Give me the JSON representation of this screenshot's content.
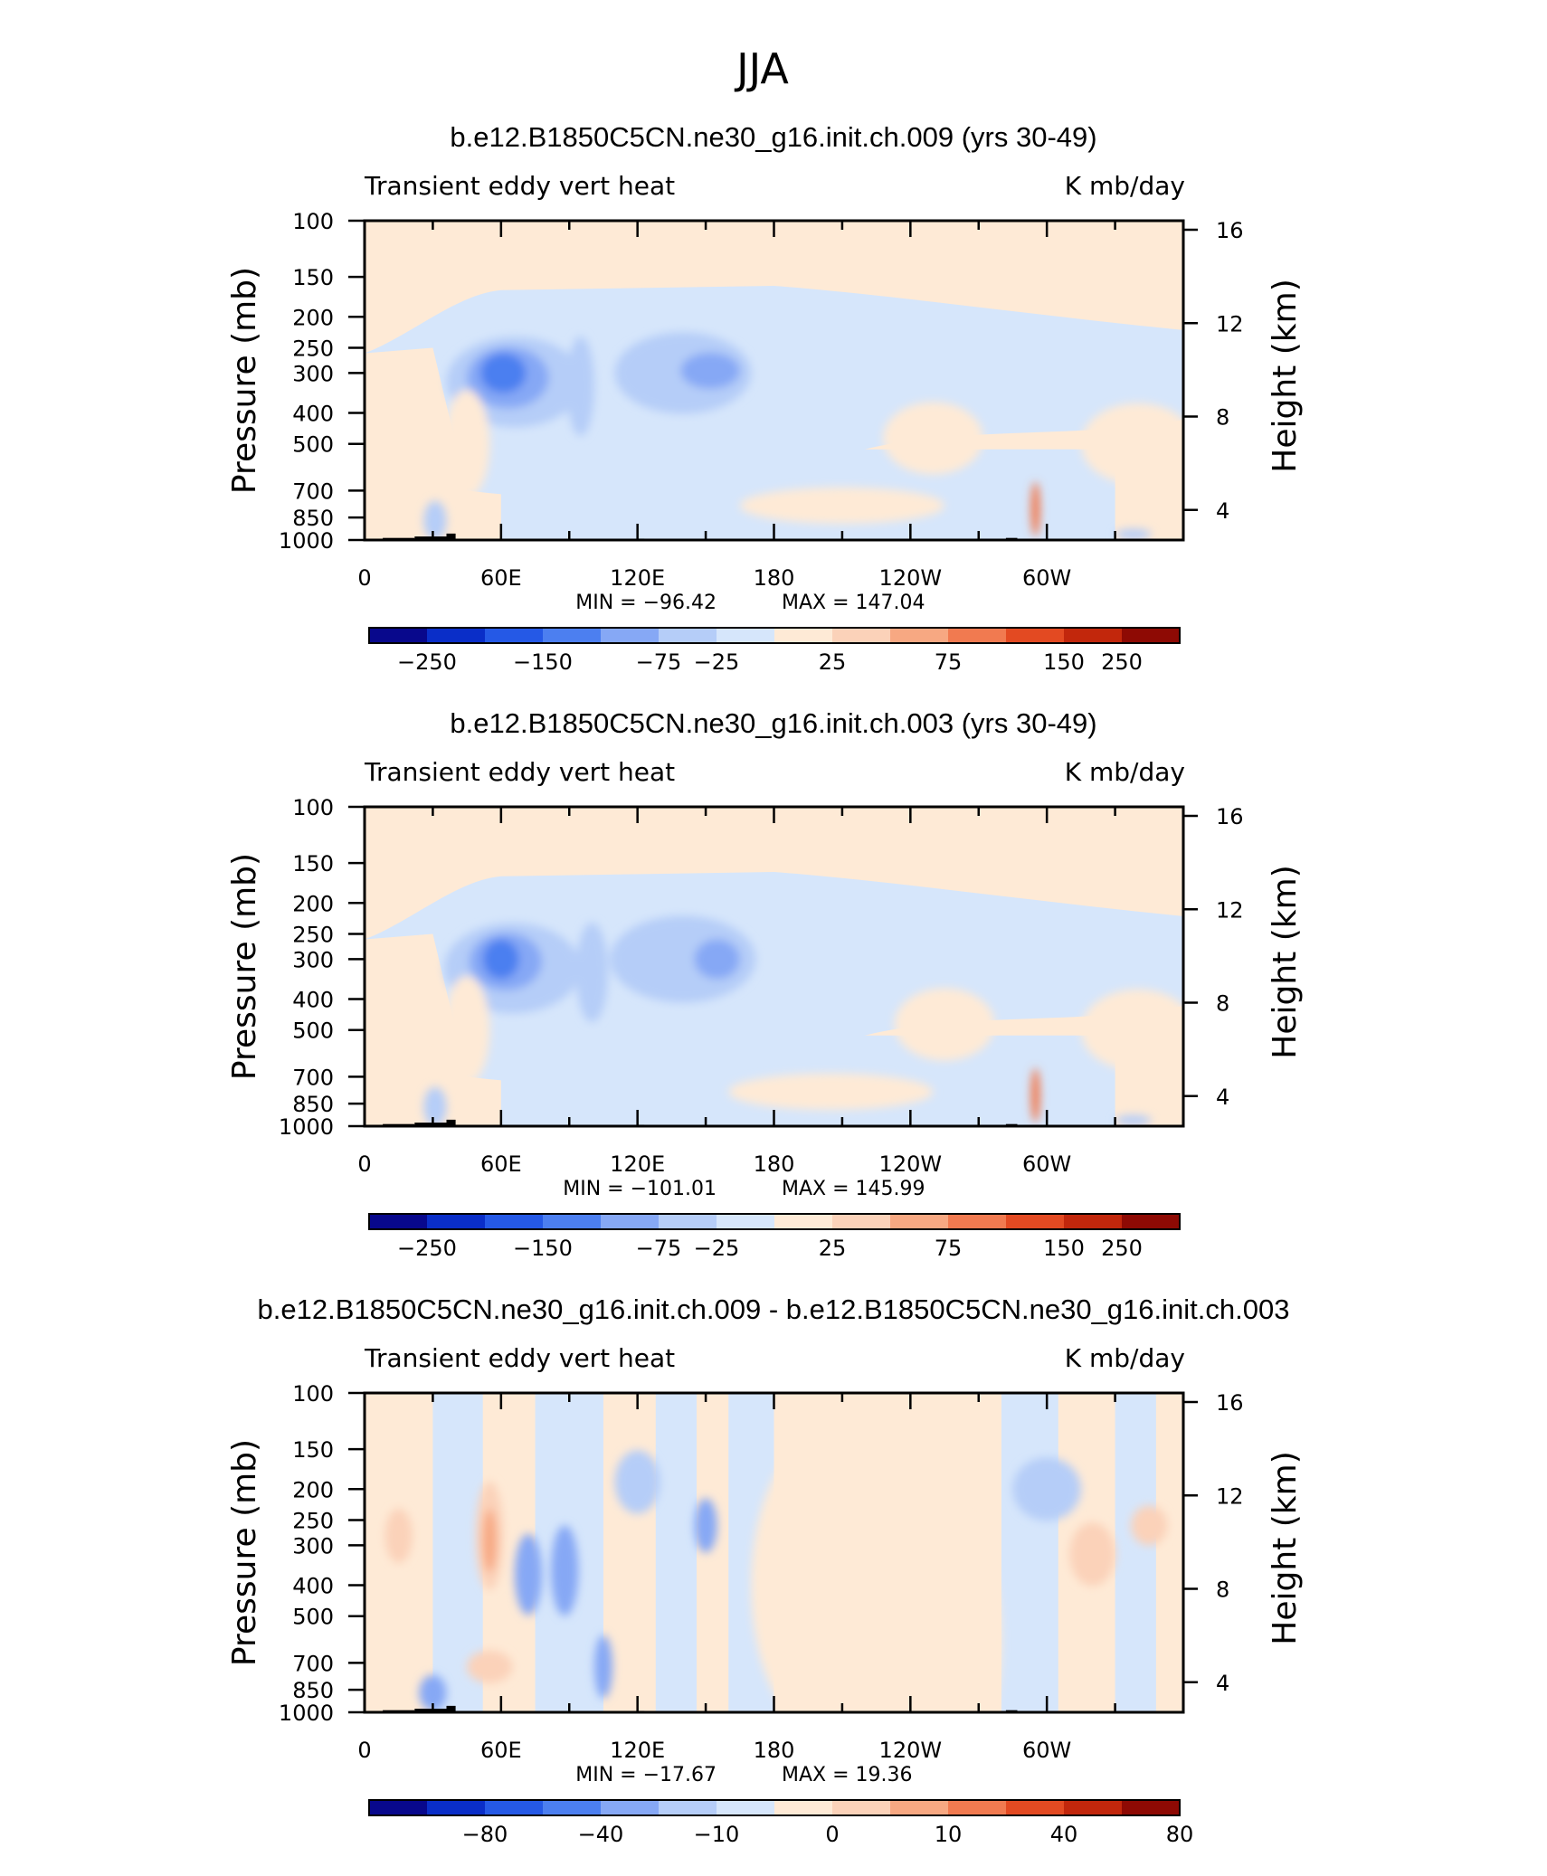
{
  "page_title": "JJA",
  "colors": {
    "neg": [
      "#08088c",
      "#0a2ec8",
      "#2559e6",
      "#4c7ff0",
      "#86a8f5",
      "#b5cdf8",
      "#d6e6fb"
    ],
    "pos": [
      "#feead6",
      "#fbd2b9",
      "#f7a882",
      "#f17a50",
      "#e34a22",
      "#c2270c",
      "#8e0a04"
    ],
    "topo": "#000000"
  },
  "chart_data": [
    {
      "type": "heatmap",
      "title": "b.e12.B1850C5CN.ne30_g16.init.ch.009 (yrs 30-49)",
      "left_label": "Transient eddy vert heat",
      "right_label": "K mb/day",
      "ylabel": "Pressure (mb)",
      "y2label": "Height (km)",
      "xticks": [
        "0",
        "60E",
        "120E",
        "180",
        "120W",
        "60W"
      ],
      "yticks": [
        "100",
        "150",
        "200",
        "250",
        "300",
        "400",
        "500",
        "700",
        "850",
        "1000"
      ],
      "y2ticks": [
        "16",
        "12",
        "8",
        "4"
      ],
      "min": -96.42,
      "max": 147.04,
      "min_label": "MIN = −96.42",
      "max_label": "MAX = 147.04",
      "colorbar_labels": [
        "−250",
        "−150",
        "−75",
        "−25",
        "25",
        "75",
        "150",
        "250"
      ]
    },
    {
      "type": "heatmap",
      "title": "b.e12.B1850C5CN.ne30_g16.init.ch.003 (yrs 30-49)",
      "left_label": "Transient eddy vert heat",
      "right_label": "K mb/day",
      "ylabel": "Pressure (mb)",
      "y2label": "Height (km)",
      "xticks": [
        "0",
        "60E",
        "120E",
        "180",
        "120W",
        "60W"
      ],
      "yticks": [
        "100",
        "150",
        "200",
        "250",
        "300",
        "400",
        "500",
        "700",
        "850",
        "1000"
      ],
      "y2ticks": [
        "16",
        "12",
        "8",
        "4"
      ],
      "min": -101.01,
      "max": 145.99,
      "min_label": "MIN = −101.01",
      "max_label": "MAX = 145.99",
      "colorbar_labels": [
        "−250",
        "−150",
        "−75",
        "−25",
        "25",
        "75",
        "150",
        "250"
      ]
    },
    {
      "type": "heatmap",
      "title": "b.e12.B1850C5CN.ne30_g16.init.ch.009 - b.e12.B1850C5CN.ne30_g16.init.ch.003",
      "left_label": "Transient eddy vert heat",
      "right_label": "K mb/day",
      "ylabel": "Pressure (mb)",
      "y2label": "Height (km)",
      "xticks": [
        "0",
        "60E",
        "120E",
        "180",
        "120W",
        "60W"
      ],
      "yticks": [
        "100",
        "150",
        "200",
        "250",
        "300",
        "400",
        "500",
        "700",
        "850",
        "1000"
      ],
      "y2ticks": [
        "16",
        "12",
        "8",
        "4"
      ],
      "min": -17.67,
      "max": 19.36,
      "min_label": "MIN = −17.67",
      "max_label": "MAX =   19.36",
      "colorbar_labels": [
        "−80",
        "−40",
        "−10",
        "0",
        "10",
        "40",
        "80"
      ]
    }
  ]
}
